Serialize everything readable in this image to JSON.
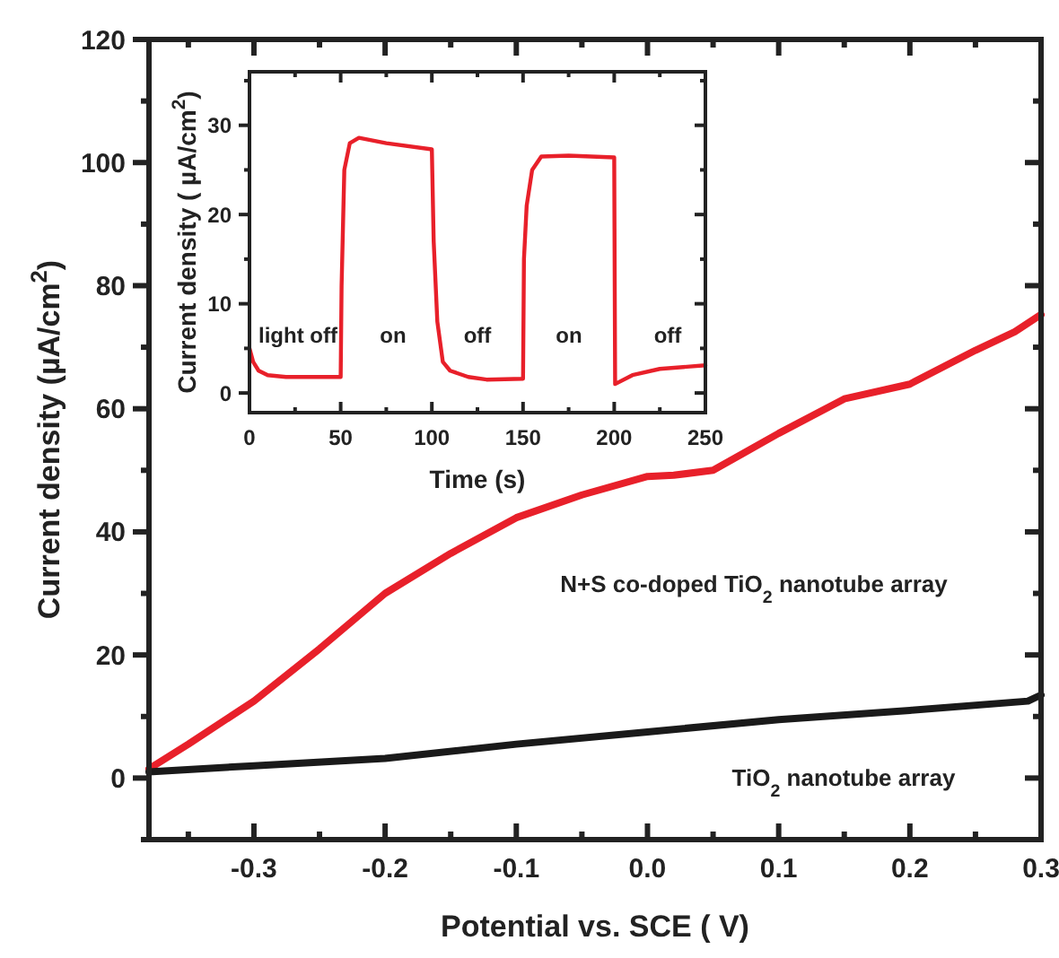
{
  "chart_data": [
    {
      "type": "line",
      "xlabel": "Potential  vs. SCE ( V)",
      "ylabel": "Current density (µA/cm$^{2}$)",
      "xlim": [
        -0.38,
        0.3
      ],
      "ylim": [
        -10,
        120
      ],
      "xticks": [
        {
          "value": -0.35,
          "label": null
        },
        -0.3,
        {
          "value": -0.25,
          "label": null
        },
        -0.2,
        {
          "value": -0.15,
          "label": null
        },
        -0.1,
        {
          "value": -0.05,
          "label": null
        },
        {
          "value": 0,
          "label": "0.0"
        },
        {
          "value": 0.05,
          "label": null
        },
        0.1,
        {
          "value": 0.15,
          "label": null
        },
        0.2,
        {
          "value": 0.25,
          "label": null
        },
        0.3
      ],
      "yticks": [
        {
          "value": -10,
          "label": null
        },
        0,
        {
          "value": 10,
          "label": null
        },
        20,
        {
          "value": 30,
          "label": null
        },
        40,
        {
          "value": 50,
          "label": null
        },
        60,
        {
          "value": 70,
          "label": null
        },
        80,
        {
          "value": 90,
          "label": null
        },
        100,
        {
          "value": 110,
          "label": null
        },
        120
      ],
      "series": [
        {
          "name": "N+S co-doped TiO$_{2}$ nanotube array",
          "color": "#e8202a",
          "x": [
            -0.38,
            -0.35,
            -0.3,
            -0.25,
            -0.2,
            -0.15,
            -0.1,
            -0.05,
            0,
            0.02,
            0.05,
            0.1,
            0.15,
            0.2,
            0.25,
            0.28,
            0.3
          ],
          "values": [
            1.5,
            5.5,
            12.5,
            21,
            30,
            36.5,
            42.3,
            46,
            49,
            49.2,
            50,
            56,
            61.6,
            64,
            69.5,
            72.5,
            75.3
          ]
        },
        {
          "name": "TiO$_{2}$ nanotube array",
          "color": "#1a1a1a",
          "x": [
            -0.38,
            -0.3,
            -0.2,
            -0.1,
            0,
            0.1,
            0.2,
            0.29,
            0.3
          ],
          "values": [
            1,
            2,
            3.2,
            5.5,
            7.5,
            9.5,
            11,
            12.5,
            13.5
          ]
        }
      ]
    },
    {
      "type": "line",
      "xlabel": "Time (s)",
      "ylabel": "Current density ( µA/cm$^{2}$)",
      "xlim": [
        0,
        250
      ],
      "ylim": [
        -2.2,
        36
      ],
      "xticks": [
        0,
        {
          "value": 25,
          "label": null
        },
        50,
        {
          "value": 75,
          "label": null
        },
        100,
        {
          "value": 125,
          "label": null
        },
        150,
        {
          "value": 175,
          "label": null
        },
        200,
        {
          "value": 225,
          "label": null
        },
        250
      ],
      "yticks": [
        0,
        {
          "value": 5,
          "label": null
        },
        10,
        {
          "value": 15,
          "label": null
        },
        20,
        {
          "value": 25,
          "label": null
        },
        30,
        {
          "value": 35,
          "label": null
        }
      ],
      "series": [
        {
          "color": "#e8202a",
          "x": [
            0,
            2,
            5,
            10,
            20,
            50,
            50.5,
            52,
            55,
            60,
            75,
            100,
            101,
            103,
            106,
            110,
            120,
            130,
            150,
            150.5,
            152,
            155,
            160,
            175,
            200,
            200.5,
            210,
            225,
            250
          ],
          "values": [
            5,
            3.5,
            2.5,
            2,
            1.8,
            1.8,
            12,
            25,
            28,
            28.6,
            28,
            27.3,
            17,
            8,
            3.5,
            2.5,
            1.8,
            1.5,
            1.6,
            15,
            21,
            25,
            26.5,
            26.6,
            26.4,
            1,
            2,
            2.7,
            3.1
          ]
        }
      ],
      "annotations": [
        "light off",
        "on",
        "off",
        "on",
        "off"
      ]
    }
  ]
}
